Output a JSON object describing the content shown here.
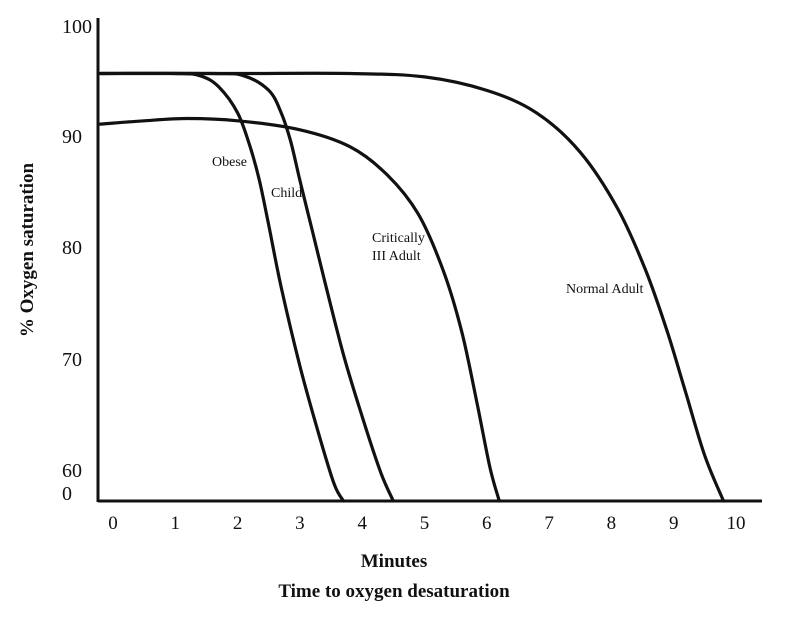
{
  "chart_data": {
    "type": "line",
    "title": "",
    "xlabel": "Minutes",
    "xlabel_sub": "Time to oxygen desaturation",
    "ylabel": "% Oxygen saturation",
    "x_ticks": [
      "0",
      "1",
      "2",
      "3",
      "4",
      "5",
      "6",
      "7",
      "8",
      "9",
      "10"
    ],
    "y_ticks": [
      "100",
      "90",
      "80",
      "70",
      "60",
      "0"
    ],
    "xlim": [
      -0.2,
      10.2
    ],
    "ylim": [
      60,
      100
    ],
    "axis_break": "y axis jumps from 60 to 0 at the origin",
    "grid": false,
    "legend": "none; series are labeled directly on the curves",
    "line_color": "#111111",
    "series": [
      {
        "name": "Obese",
        "points": [
          [
            -0.2,
            98
          ],
          [
            1.0,
            98
          ],
          [
            1.4,
            97.8
          ],
          [
            1.7,
            96.8
          ],
          [
            2.0,
            94.5
          ],
          [
            2.2,
            91.5
          ],
          [
            2.35,
            88.5
          ],
          [
            2.5,
            84.5
          ],
          [
            2.7,
            79
          ],
          [
            3.0,
            72
          ],
          [
            3.3,
            66
          ],
          [
            3.55,
            61.5
          ],
          [
            3.7,
            60
          ]
        ]
      },
      {
        "name": "Child",
        "points": [
          [
            -0.2,
            98
          ],
          [
            1.6,
            98
          ],
          [
            2.1,
            97.8
          ],
          [
            2.5,
            96.5
          ],
          [
            2.7,
            94.5
          ],
          [
            2.85,
            92
          ],
          [
            3.0,
            88.5
          ],
          [
            3.2,
            84
          ],
          [
            3.4,
            79.5
          ],
          [
            3.7,
            73
          ],
          [
            4.0,
            67.5
          ],
          [
            4.3,
            62.5
          ],
          [
            4.5,
            60
          ]
        ]
      },
      {
        "name": "Critically Ill Adult",
        "points": [
          [
            -0.2,
            93.5
          ],
          [
            0.5,
            93.8
          ],
          [
            1.2,
            94
          ],
          [
            2.0,
            93.8
          ],
          [
            3.0,
            93
          ],
          [
            3.8,
            91.5
          ],
          [
            4.4,
            89
          ],
          [
            4.9,
            85.5
          ],
          [
            5.3,
            80.5
          ],
          [
            5.6,
            75
          ],
          [
            5.85,
            68.5
          ],
          [
            6.05,
            63
          ],
          [
            6.2,
            60
          ]
        ]
      },
      {
        "name": "Normal Adult",
        "points": [
          [
            -0.2,
            98
          ],
          [
            2.0,
            98
          ],
          [
            3.8,
            98
          ],
          [
            5.0,
            97.7
          ],
          [
            6.0,
            96.5
          ],
          [
            6.8,
            94.5
          ],
          [
            7.5,
            91
          ],
          [
            8.1,
            86
          ],
          [
            8.55,
            80.5
          ],
          [
            8.9,
            75
          ],
          [
            9.2,
            69.5
          ],
          [
            9.5,
            64
          ],
          [
            9.8,
            60
          ]
        ]
      }
    ]
  },
  "labels": {
    "obese": "Obese",
    "child": "Child",
    "critically_line1": "Critically",
    "critically_line2": "III Adult",
    "normal_adult": "Normal Adult"
  }
}
